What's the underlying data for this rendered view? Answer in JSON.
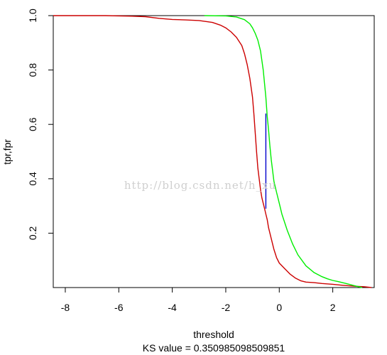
{
  "chart_data": {
    "type": "line",
    "xlabel": "threshold",
    "ylabel": "tpr,fpr",
    "subtitle": "KS value = 0.350985098509851",
    "watermark": "http://blog.csdn.net/h_xu",
    "xlim": [
      -8.45,
      3.55
    ],
    "ylim": [
      0,
      1
    ],
    "x_ticks": [
      -8,
      -6,
      -4,
      -2,
      0,
      2
    ],
    "y_ticks": [
      0.2,
      0.4,
      0.6,
      0.8,
      1.0
    ],
    "series": [
      {
        "color": "#cc0000",
        "x": [
          -8.45,
          -7.5,
          -6.5,
          -5.5,
          -5.0,
          -4.5,
          -4.0,
          -3.5,
          -3.0,
          -2.5,
          -2.2,
          -2.0,
          -1.8,
          -1.6,
          -1.4,
          -1.3,
          -1.2,
          -1.1,
          -1.0,
          -0.95,
          -0.9,
          -0.85,
          -0.8,
          -0.75,
          -0.7,
          -0.65,
          -0.6,
          -0.55,
          -0.5,
          -0.45,
          -0.4,
          -0.3,
          -0.2,
          -0.1,
          0.0,
          0.2,
          0.4,
          0.6,
          0.8,
          1.0,
          1.3,
          1.6,
          2.0,
          2.4,
          2.8,
          3.2,
          3.45
        ],
        "values": [
          1.0,
          1.0,
          1.0,
          0.998,
          0.996,
          0.99,
          0.986,
          0.984,
          0.982,
          0.975,
          0.965,
          0.955,
          0.94,
          0.92,
          0.89,
          0.86,
          0.82,
          0.77,
          0.7,
          0.64,
          0.57,
          0.5,
          0.44,
          0.4,
          0.36,
          0.33,
          0.31,
          0.29,
          0.27,
          0.25,
          0.22,
          0.18,
          0.14,
          0.11,
          0.09,
          0.07,
          0.05,
          0.035,
          0.025,
          0.02,
          0.018,
          0.015,
          0.012,
          0.008,
          0.005,
          0.003,
          0.0
        ]
      },
      {
        "color": "#00ee00",
        "x": [
          -2.8,
          -2.0,
          -1.6,
          -1.3,
          -1.1,
          -1.0,
          -0.9,
          -0.8,
          -0.7,
          -0.6,
          -0.5,
          -0.45,
          -0.4,
          -0.35,
          -0.3,
          -0.25,
          -0.2,
          -0.1,
          0.0,
          0.1,
          0.2,
          0.3,
          0.5,
          0.7,
          1.0,
          1.3,
          1.6,
          1.8,
          2.0,
          2.2,
          2.5,
          2.8,
          3.1
        ],
        "values": [
          1.0,
          0.999,
          0.995,
          0.985,
          0.97,
          0.955,
          0.935,
          0.91,
          0.87,
          0.8,
          0.7,
          0.63,
          0.58,
          0.52,
          0.47,
          0.43,
          0.39,
          0.35,
          0.31,
          0.27,
          0.24,
          0.21,
          0.16,
          0.12,
          0.08,
          0.055,
          0.04,
          0.032,
          0.026,
          0.022,
          0.015,
          0.007,
          0.0
        ]
      },
      {
        "color": "#0000cc",
        "x": [
          -0.5,
          -0.5
        ],
        "values": [
          0.64,
          0.29
        ]
      }
    ]
  }
}
